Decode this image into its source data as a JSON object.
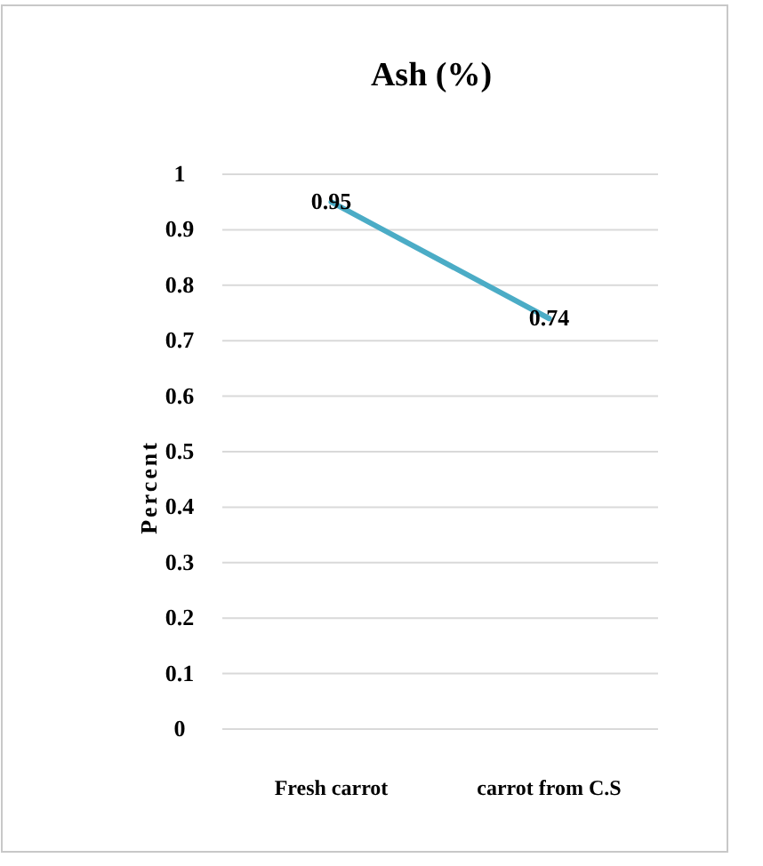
{
  "chart_data": {
    "type": "line",
    "title": "Ash (%)",
    "ylabel": "Percent",
    "categories": [
      "Fresh carrot",
      "carrot from C.S"
    ],
    "series": [
      {
        "color": "#4bacc6",
        "values": [
          0.95,
          0.74
        ]
      }
    ],
    "ylim": [
      0,
      1
    ],
    "yticks": [
      0,
      0.1,
      0.2,
      0.3,
      0.4,
      0.5,
      0.6,
      0.7,
      0.8,
      0.9,
      1
    ],
    "grid": "y",
    "data_labels": true,
    "marker": "none",
    "line_style": "solid"
  }
}
